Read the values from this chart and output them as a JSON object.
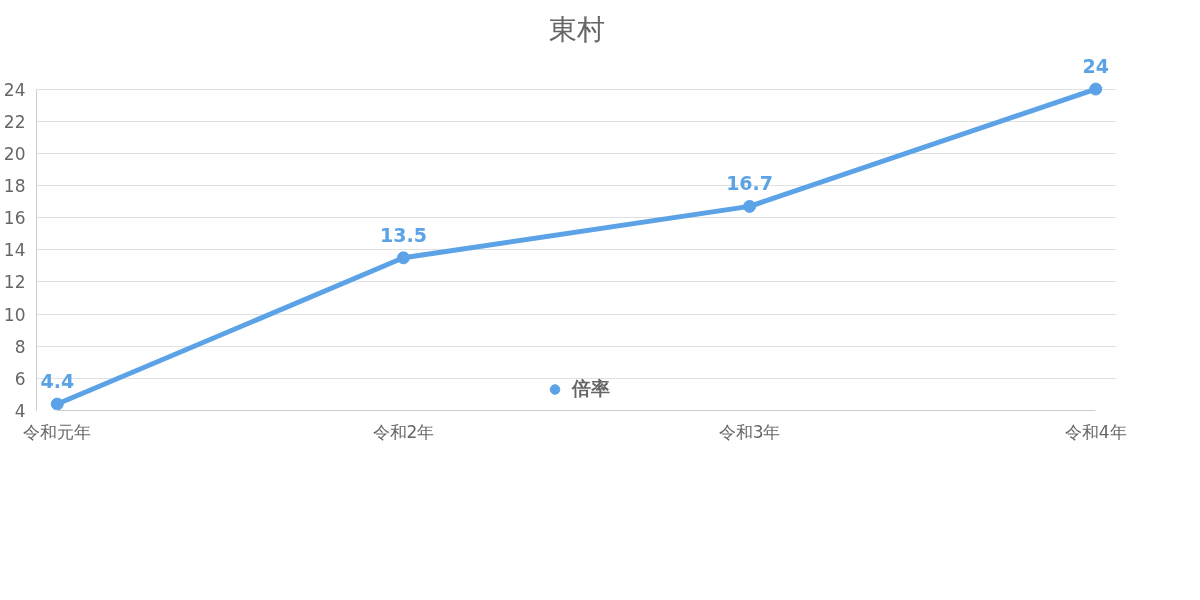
{
  "chart_data": {
    "type": "line",
    "title": "東村",
    "categories": [
      "令和元年",
      "令和2年",
      "令和3年",
      "令和4年"
    ],
    "series": [
      {
        "name": "倍率",
        "color": "#5ba3e6",
        "values": [
          4.4,
          13.5,
          16.7,
          24
        ]
      }
    ],
    "ylim": [
      4,
      24
    ],
    "yticks": [
      4,
      6,
      8,
      10,
      12,
      14,
      16,
      18,
      20,
      22,
      24
    ],
    "grid": "y",
    "legend": "bottom",
    "marker": "circle",
    "data_labels": true
  }
}
